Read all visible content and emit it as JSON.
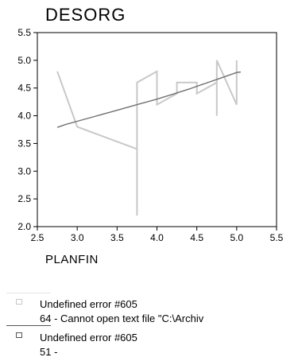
{
  "chart_data": {
    "type": "line",
    "title": "DESORG",
    "xlabel": "PLANFIN",
    "ylabel": "",
    "xlim": [
      2.5,
      5.5
    ],
    "ylim": [
      2.0,
      5.5
    ],
    "x_ticks": [
      "2.5",
      "3.0",
      "3.5",
      "4.0",
      "4.5",
      "5.0",
      "5.5"
    ],
    "y_ticks": [
      "2.0",
      "2.5",
      "3.0",
      "3.5",
      "4.0",
      "4.5",
      "5.0",
      "5.5"
    ],
    "grid": false,
    "legend_position": "bottom",
    "series": [
      {
        "color": "#c8c8c8",
        "x": [
          2.75,
          3.0,
          3.75,
          3.75,
          3.75,
          4.0,
          4.0,
          4.25,
          4.25,
          4.5,
          4.5,
          4.75,
          4.75,
          4.75,
          5.0,
          5.0
        ],
        "y": [
          4.8,
          3.8,
          3.4,
          2.2,
          4.6,
          4.8,
          4.2,
          4.4,
          4.6,
          4.6,
          4.4,
          4.6,
          4.0,
          5.0,
          4.2,
          5.0
        ]
      },
      {
        "color": "#707070",
        "x": [
          2.75,
          2.85,
          3.0,
          3.2,
          3.4,
          3.6,
          3.8,
          4.0,
          4.2,
          4.4,
          4.6,
          4.8,
          5.0,
          5.05
        ],
        "y": [
          3.79,
          3.84,
          3.9,
          3.98,
          4.06,
          4.14,
          4.22,
          4.3,
          4.39,
          4.48,
          4.58,
          4.68,
          4.78,
          4.79
        ]
      }
    ]
  },
  "legend": [
    {
      "label": "Undefined error #605",
      "detail": "64 - Cannot open text file \"C:\\Archiv",
      "color": "#c8c8c8"
    },
    {
      "label": "Undefined error #605",
      "detail": "51 -",
      "color": "#555555"
    }
  ]
}
